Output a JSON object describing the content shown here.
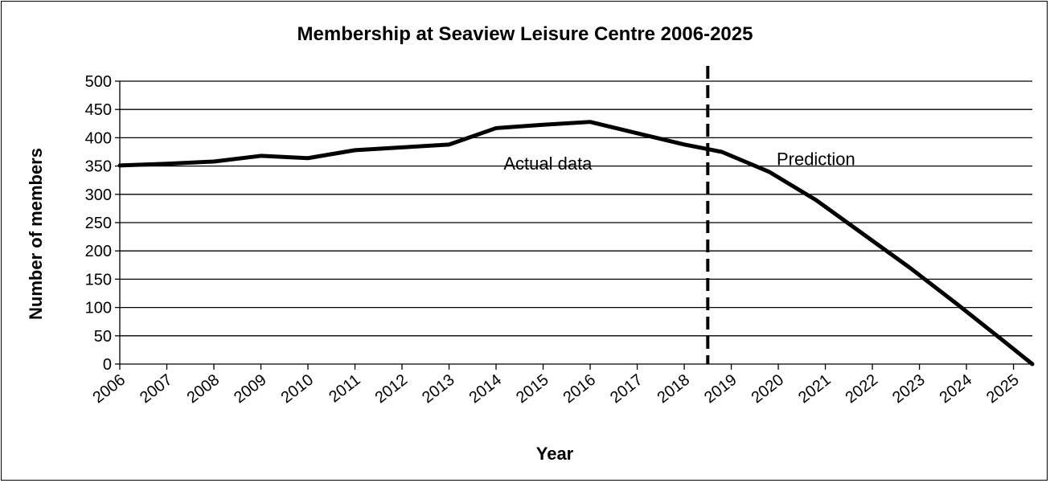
{
  "chart_data": {
    "type": "line",
    "title": "Membership at Seaview Leisure Centre 2006-2025",
    "xlabel": "Year",
    "ylabel": "Number of members",
    "categories": [
      "2006",
      "2007",
      "2008",
      "2009",
      "2010",
      "2011",
      "2012",
      "2013",
      "2014",
      "2015",
      "2016",
      "2017",
      "2018",
      "2019",
      "2020",
      "2021",
      "2022",
      "2023",
      "2024",
      "2025"
    ],
    "ylim": [
      0,
      500
    ],
    "yticks": [
      0,
      50,
      100,
      150,
      200,
      250,
      300,
      350,
      400,
      450,
      500
    ],
    "grid": "horizontal",
    "series": [
      {
        "values": [
          351,
          354,
          358,
          368,
          364,
          378,
          383,
          388,
          417,
          423,
          428,
          408,
          388,
          375,
          340,
          290,
          230,
          170,
          106,
          40,
          0
        ],
        "x": [
          2006,
          2007,
          2008,
          2009,
          2010,
          2011,
          2012,
          2013,
          2014,
          2015,
          2016,
          2017,
          2018,
          2018.8,
          2019.8,
          2020.8,
          2021.8,
          2022.8,
          2023.8,
          2024.8,
          2025.4
        ]
      }
    ],
    "divider_year": 2018.5,
    "annotations": [
      {
        "text": "Actual data"
      },
      {
        "text": "Prediction"
      }
    ],
    "color": "#000000"
  }
}
